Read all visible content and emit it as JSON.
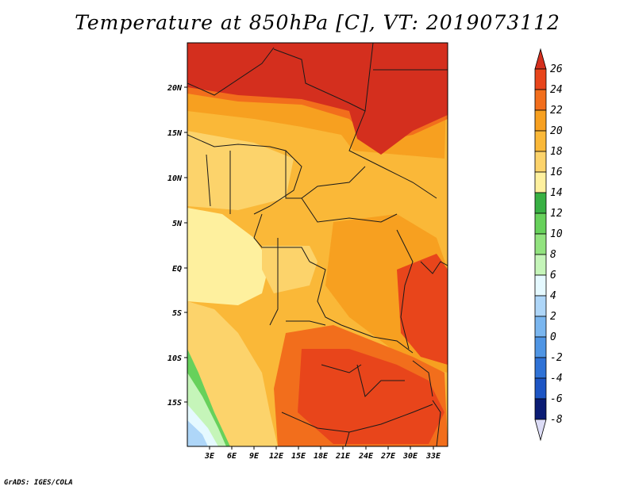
{
  "title": "Temperature at 850hPa [C], VT: 2019073112",
  "credit": "GrADS: IGES/COLA",
  "map": {
    "lat_labels": [
      "20N",
      "15N",
      "10N",
      "5N",
      "EQ",
      "5S",
      "10S",
      "15S"
    ],
    "lon_labels": [
      "3E",
      "6E",
      "9E",
      "12E",
      "15E",
      "18E",
      "21E",
      "24E",
      "27E",
      "30E",
      "33E"
    ]
  },
  "colorbar": {
    "labels": [
      "26",
      "24",
      "22",
      "20",
      "18",
      "16",
      "14",
      "12",
      "10",
      "8",
      "6",
      "4",
      "2",
      "0",
      "-2",
      "-4",
      "-6",
      "-8"
    ],
    "colors": [
      "#d42f1e",
      "#e8451b",
      "#f26e1c",
      "#f7a020",
      "#fab838",
      "#fcd36b",
      "#fef09e",
      "#38b043",
      "#67d15b",
      "#92e37f",
      "#c5f5b9",
      "#e5f9ff",
      "#aed6f8",
      "#7ab6ef",
      "#4f95e4",
      "#2f72d6",
      "#1d55c4",
      "#123aa5",
      "#0b1c74",
      "#dcdcf6"
    ]
  }
}
